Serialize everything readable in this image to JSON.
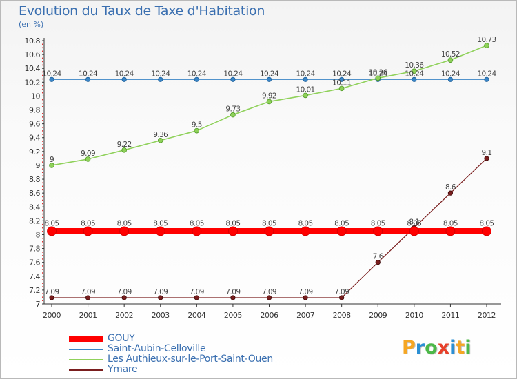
{
  "chart_data": {
    "type": "line",
    "title": "Evolution du Taux de Taxe d'Habitation",
    "unit_label": "(en %)",
    "x": [
      "2000",
      "2001",
      "2002",
      "2003",
      "2004",
      "2005",
      "2006",
      "2007",
      "2008",
      "2009",
      "2010",
      "2011",
      "2012"
    ],
    "y_ticks": [
      "7",
      "7.2",
      "7.4",
      "7.6",
      "7.8",
      "8",
      "8.2",
      "8.4",
      "8.6",
      "8.8",
      "9",
      "9.2",
      "9.4",
      "9.6",
      "9.8",
      "10",
      "10.2",
      "10.4",
      "10.6",
      "10.8"
    ],
    "ylim": [
      7,
      10.8
    ],
    "grid": false,
    "legend_position": "bottom-left",
    "series": [
      {
        "name": "GOUY",
        "color": "#ff0000",
        "values": [
          8.05,
          8.05,
          8.05,
          8.05,
          8.05,
          8.05,
          8.05,
          8.05,
          8.05,
          8.05,
          8.05,
          8.05,
          8.05
        ],
        "labels": [
          "8.05",
          "8.05",
          "8.05",
          "8.05",
          "8.05",
          "8.05",
          "8.05",
          "8.05",
          "8.05",
          "8.05",
          "8.05",
          "8.05",
          "8.05"
        ]
      },
      {
        "name": "Saint-Aubin-Celloville",
        "color": "#3a85c6",
        "values": [
          10.24,
          10.24,
          10.24,
          10.24,
          10.24,
          10.24,
          10.24,
          10.24,
          10.24,
          10.24,
          10.24,
          10.24,
          10.24
        ],
        "labels": [
          "10.24",
          "10.24",
          "10.24",
          "10.24",
          "10.24",
          "10.24",
          "10.24",
          "10.24",
          "10.24",
          "10.24",
          "10.24",
          "10.24",
          "10.24"
        ]
      },
      {
        "name": "Les Authieux-sur-le-Port-Saint-Ouen",
        "color": "#8fd15a",
        "values": [
          9,
          9.09,
          9.22,
          9.36,
          9.5,
          9.73,
          9.92,
          10.01,
          10.11,
          10.26,
          10.36,
          10.52,
          10.73
        ],
        "labels": [
          "9",
          "9.09",
          "9.22",
          "9.36",
          "9.5",
          "9.73",
          "9.92",
          "10.01",
          "10.11",
          "10.26",
          "10.36",
          "10.52",
          "10.73"
        ]
      },
      {
        "name": "Ymare",
        "color": "#7a1e1e",
        "values": [
          7.09,
          7.09,
          7.09,
          7.09,
          7.09,
          7.09,
          7.09,
          7.09,
          7.09,
          7.6,
          8.1,
          8.6,
          9.1
        ],
        "labels": [
          "7.09",
          "7.09",
          "7.09",
          "7.09",
          "7.09",
          "7.09",
          "7.09",
          "7.09",
          "7.09",
          "7.6",
          "8.1",
          "8.6",
          "9.1"
        ]
      }
    ]
  },
  "brand": {
    "letters": [
      "P",
      "r",
      "o",
      "x",
      "i",
      "t",
      "i"
    ],
    "colors": [
      "#f5a623",
      "#2a8fd4",
      "#4cb848",
      "#e8402a",
      "#2a8fd4",
      "#f5a623",
      "#4cb848"
    ]
  }
}
